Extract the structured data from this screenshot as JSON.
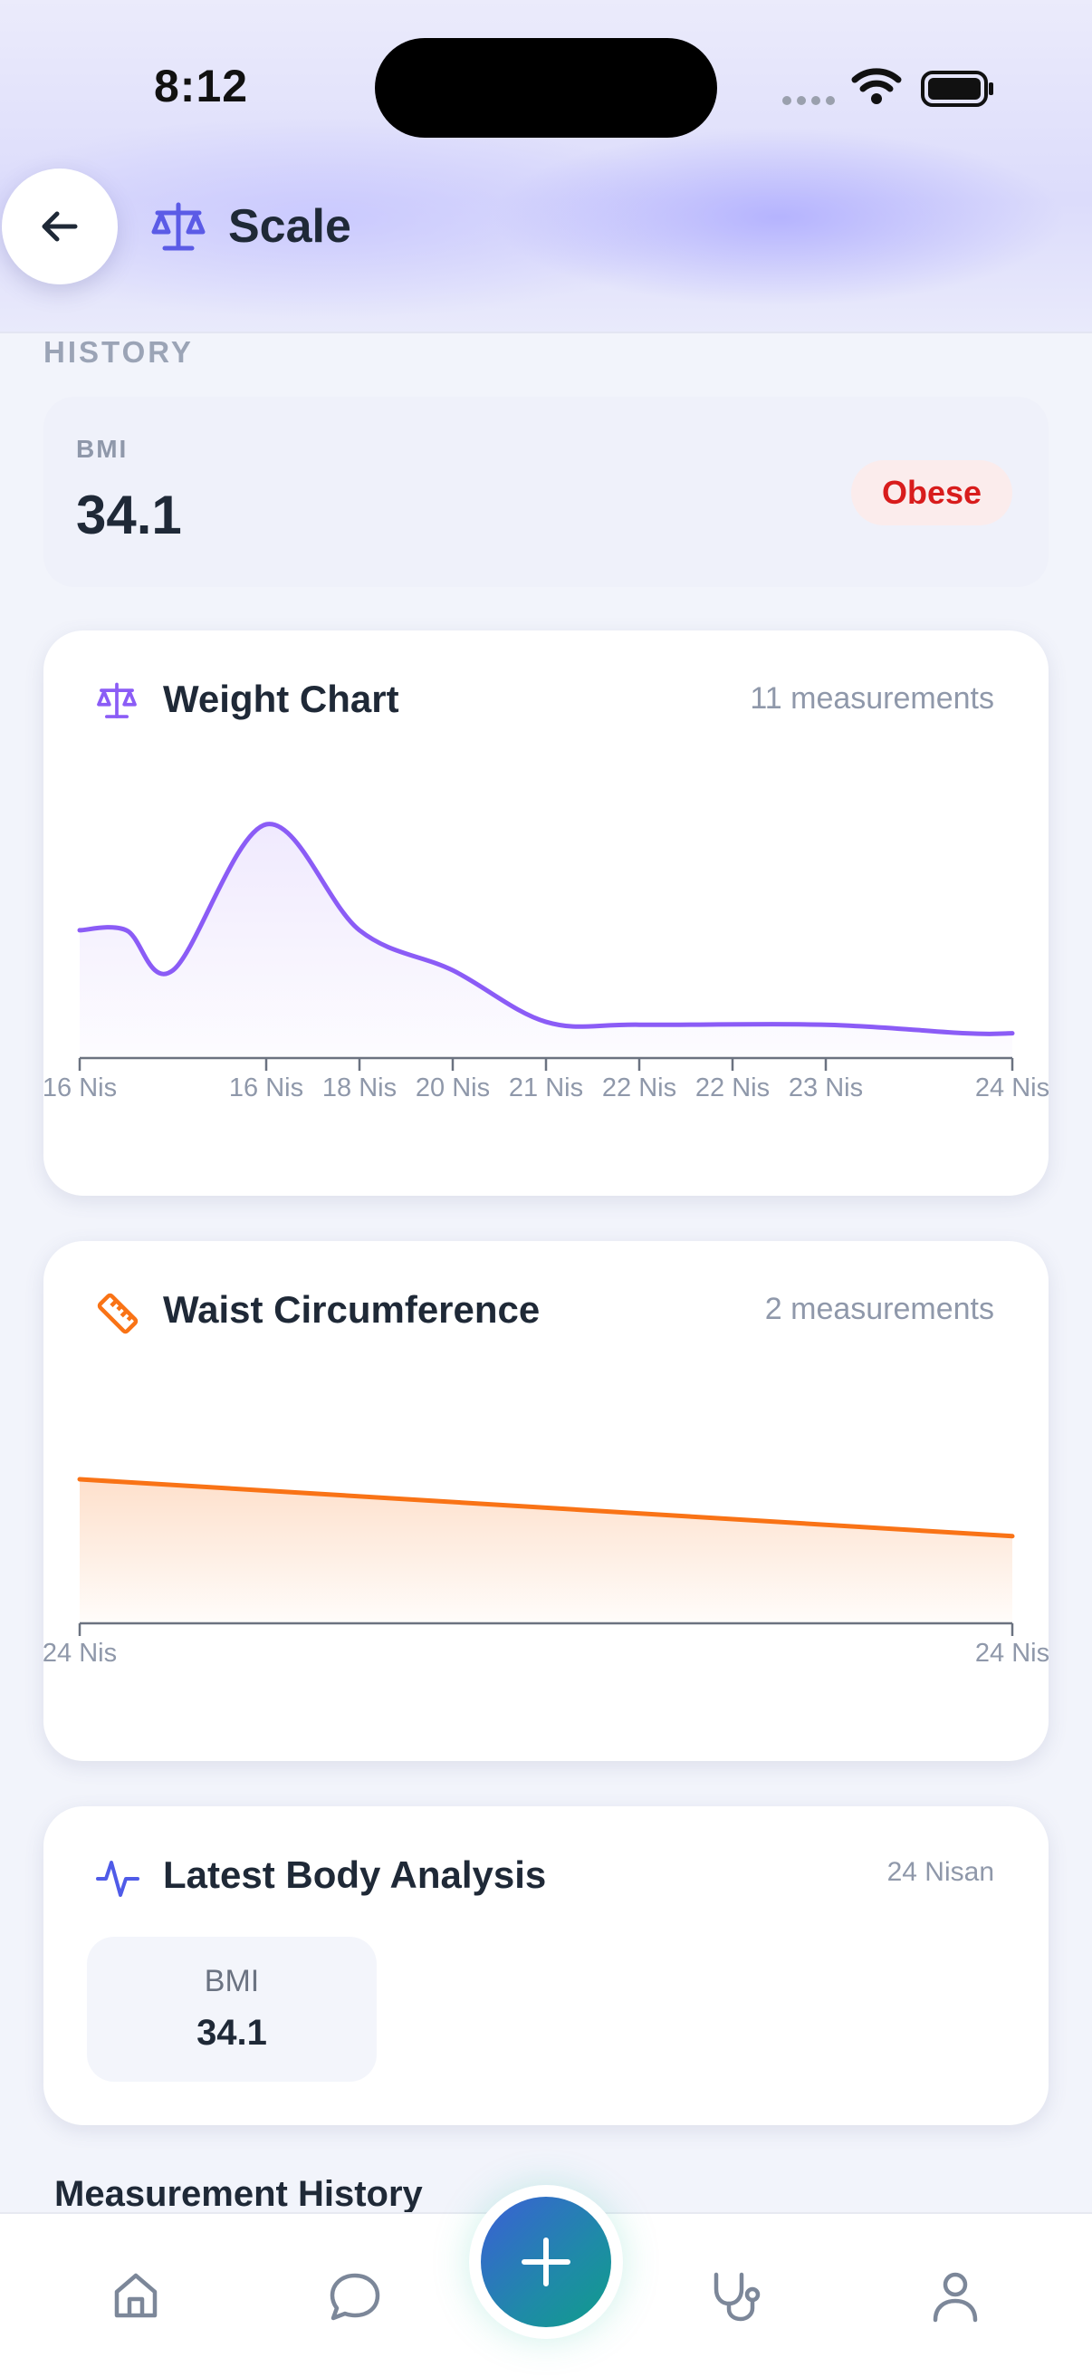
{
  "status_bar": {
    "time": "8:12"
  },
  "header": {
    "title": "Scale"
  },
  "history": {
    "section_label": "HISTORY",
    "bmi": {
      "label": "BMI",
      "value": "34.1",
      "badge": "Obese",
      "badge_color": "#d81c1c"
    }
  },
  "weight_card": {
    "title": "Weight Chart",
    "meta": "11 measurements",
    "color": "#8b5cf6"
  },
  "waist_card": {
    "title": "Waist Circumference",
    "meta": "2 measurements",
    "color": "#f97316"
  },
  "analysis_card": {
    "title": "Latest Body Analysis",
    "date": "24 Nisan",
    "metric": {
      "label": "BMI",
      "value": "34.1"
    }
  },
  "measurement_history": {
    "heading": "Measurement History"
  },
  "nav": {
    "items": [
      {
        "icon": "home-icon"
      },
      {
        "icon": "chat-icon"
      },
      {
        "icon": "add-icon"
      },
      {
        "icon": "stethoscope-icon"
      },
      {
        "icon": "profile-icon"
      }
    ]
  },
  "chart_data": [
    {
      "type": "area",
      "title": "Weight Chart",
      "xlabel": "",
      "ylabel": "",
      "x": [
        "16 Nis",
        "16 Nis",
        "16 Nis",
        "18 Nis",
        "20 Nis",
        "21 Nis",
        "22 Nis",
        "22 Nis",
        "23 Nis",
        "24 Nis",
        "24 Nis"
      ],
      "tick_labels": [
        "16 Nis",
        "16 Nis",
        "18 Nis",
        "20 Nis",
        "21 Nis",
        "22 Nis",
        "22 Nis",
        "23 Nis",
        "24 Nis"
      ],
      "series": [
        {
          "values": [
            0.63,
            0.63,
            0.49,
            1.0,
            0.63,
            0.49,
            0.31,
            0.3,
            0.3,
            0.27,
            0.27
          ]
        }
      ],
      "ylim": [
        0,
        1
      ],
      "grid": false
    },
    {
      "type": "area",
      "title": "Waist Circumference",
      "xlabel": "",
      "ylabel": "",
      "x": [
        "24 Nis",
        "24 Nis"
      ],
      "tick_labels": [
        "24 Nis",
        "24 Nis"
      ],
      "series": [
        {
          "values": [
            1.0,
            0.6
          ]
        }
      ],
      "ylim": [
        0,
        1
      ],
      "grid": false
    }
  ]
}
